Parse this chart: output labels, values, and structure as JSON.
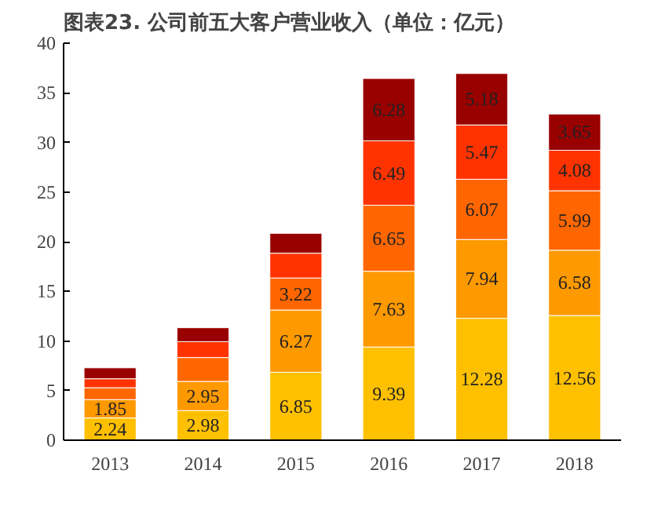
{
  "chart_data": {
    "type": "bar",
    "title": "图表23.  公司前五大客户营业收入（单位：亿元）",
    "stacked": true,
    "categories": [
      "2013",
      "2014",
      "2015",
      "2016",
      "2017",
      "2018"
    ],
    "series": [
      {
        "color": "#ffc000",
        "values": [
          2.24,
          2.98,
          6.85,
          9.39,
          12.28,
          12.56
        ],
        "value_labels": [
          "2.24",
          "2.98",
          "6.85",
          "9.39",
          "12.28",
          "12.56"
        ]
      },
      {
        "color": "#ff9900",
        "values": [
          1.85,
          2.95,
          6.27,
          7.63,
          7.94,
          6.58
        ],
        "value_labels": [
          "1.85",
          "2.95",
          "6.27",
          "7.63",
          "7.94",
          "6.58"
        ]
      },
      {
        "color": "#ff6600",
        "values": [
          1.2,
          2.4,
          3.22,
          6.65,
          6.07,
          5.99
        ],
        "value_labels": [
          null,
          null,
          "3.22",
          "6.65",
          "6.07",
          "5.99"
        ]
      },
      {
        "color": "#ff3300",
        "values": [
          0.9,
          1.6,
          2.5,
          6.49,
          5.47,
          4.08
        ],
        "value_labels": [
          null,
          null,
          null,
          "6.49",
          "5.47",
          "4.08"
        ]
      },
      {
        "color": "#990000",
        "values": [
          1.1,
          1.4,
          2.0,
          6.28,
          5.18,
          3.65
        ],
        "value_labels": [
          null,
          null,
          null,
          "6.28",
          "5.18",
          "3.65"
        ]
      }
    ],
    "ylim": [
      0,
      40
    ],
    "yticks": [
      0,
      5,
      10,
      15,
      20,
      25,
      30,
      35,
      40
    ],
    "grid": false
  }
}
